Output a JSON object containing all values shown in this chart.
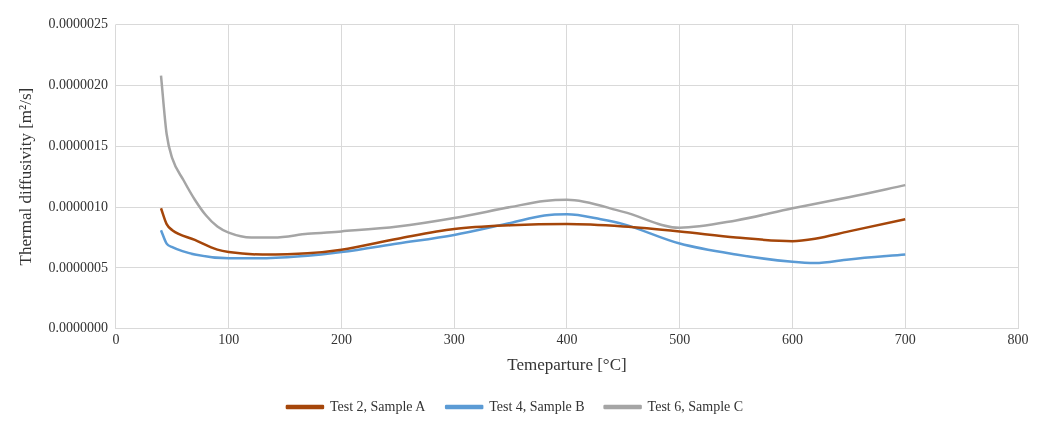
{
  "chart_data": {
    "type": "line",
    "xlabel": "Temeparture [°C]",
    "ylabel": "Thermal diffusivity [m²/s]",
    "xlim": [
      0,
      800
    ],
    "xticks": [
      0,
      100,
      200,
      300,
      400,
      500,
      600,
      700,
      800
    ],
    "ylim": [
      0,
      2.5e-06
    ],
    "yticks": [
      {
        "value": 0,
        "label": "0.0000000"
      },
      {
        "value": 5e-07,
        "label": "0.0000005"
      },
      {
        "value": 1e-06,
        "label": "0.0000010"
      },
      {
        "value": 1.5e-06,
        "label": "0.0000015"
      },
      {
        "value": 2e-06,
        "label": "0.0000020"
      },
      {
        "value": 2.5e-06,
        "label": "0.0000025"
      }
    ],
    "grid": true,
    "legend": "bottom",
    "marker": "none",
    "line_style": "solid",
    "series": [
      {
        "name": "Test 2, Sample A",
        "color": "#a5460a",
        "x": [
          40,
          45,
          50,
          70,
          90,
          100,
          130,
          170,
          200,
          250,
          300,
          350,
          400,
          450,
          500,
          550,
          600,
          620,
          650,
          700
        ],
        "values": [
          9.9e-07,
          8.6e-07,
          8.1e-07,
          7.3e-07,
          6.5e-07,
          6.3e-07,
          6.1e-07,
          6.2e-07,
          6.5e-07,
          7.4e-07,
          8.2e-07,
          8.5e-07,
          8.6e-07,
          8.4e-07,
          8e-07,
          7.5e-07,
          7.2e-07,
          7.4e-07,
          8e-07,
          9e-07
        ]
      },
      {
        "name": "Test 4, Sample B",
        "color": "#5b9bd5",
        "x": [
          40,
          45,
          50,
          70,
          100,
          130,
          170,
          200,
          250,
          300,
          350,
          380,
          400,
          430,
          450,
          500,
          550,
          600,
          620,
          650,
          700
        ],
        "values": [
          8.1e-07,
          7e-07,
          6.7e-07,
          6.1e-07,
          5.8e-07,
          5.8e-07,
          6e-07,
          6.3e-07,
          7e-07,
          7.7e-07,
          8.7e-07,
          9.3e-07,
          9.4e-07,
          9e-07,
          8.6e-07,
          7e-07,
          6.1e-07,
          5.5e-07,
          5.4e-07,
          5.7e-07,
          6.1e-07
        ]
      },
      {
        "name": "Test 6, Sample C",
        "color": "#a5a5a5",
        "x": [
          40,
          45,
          50,
          60,
          70,
          80,
          90,
          100,
          120,
          140,
          170,
          200,
          250,
          300,
          350,
          380,
          400,
          450,
          500,
          550,
          600,
          650,
          700
        ],
        "values": [
          2.08e-06,
          1.6e-06,
          1.4e-06,
          1.22e-06,
          1.06e-06,
          9.3e-07,
          8.4e-07,
          7.9e-07,
          7.5e-07,
          7.5e-07,
          7.8e-07,
          8e-07,
          8.4e-07,
          9.1e-07,
          1e-06,
          1.05e-06,
          1.06e-06,
          9.6e-07,
          8.3e-07,
          8.9e-07,
          9.9e-07,
          1.08e-06,
          1.18e-06
        ]
      }
    ]
  }
}
